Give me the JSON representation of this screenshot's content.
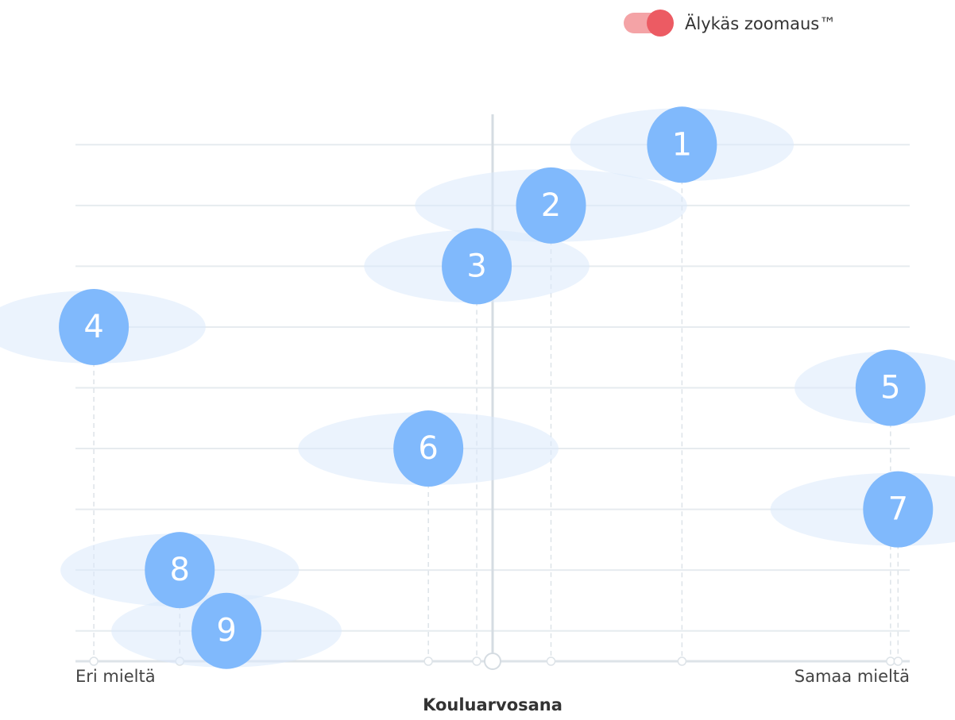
{
  "toggle": {
    "label": "Älykäs zoomaus™",
    "on": true
  },
  "chart_data": {
    "type": "scatter",
    "xlabel": "Kouluarvosana",
    "xlim": [
      0,
      100
    ],
    "xticks": [
      {
        "value": 0,
        "label": "Eri mieltä"
      },
      {
        "value": 100,
        "label": "Samaa mieltä"
      }
    ],
    "ylim": [
      0.5,
      9.5
    ],
    "yticks": [
      1,
      2,
      3,
      4,
      5,
      6,
      7,
      8,
      9
    ],
    "grid": true,
    "series": [
      {
        "color": "#80b9fc",
        "x": [
          72.7,
          57,
          48.1,
          2.2,
          97.7,
          42.3,
          98.6,
          12.5,
          18.1
        ],
        "values": [
          1,
          2,
          3,
          4,
          5,
          6,
          7,
          8,
          9
        ],
        "errors": [
          13.4,
          16.3,
          13.5,
          13.4,
          11.5,
          15.6,
          15.3,
          14.3,
          13.8
        ]
      }
    ]
  }
}
